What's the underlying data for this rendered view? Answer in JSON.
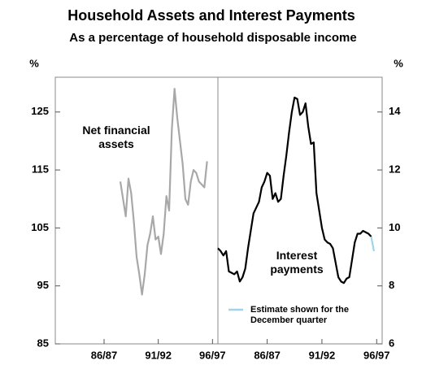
{
  "title": "Household Assets and Interest Payments",
  "subtitle": "As a percentage of household disposable income",
  "chart_data": [
    {
      "type": "line",
      "ylabel": "%",
      "axis_side": "left",
      "xlim": [
        1982,
        1997
      ],
      "xticks": [
        {
          "value": 1986.5,
          "label": "86/87"
        },
        {
          "value": 1991.5,
          "label": "91/92"
        },
        {
          "value": 1996.5,
          "label": "96/97"
        }
      ],
      "ylim": [
        85,
        131
      ],
      "yticks": [
        85,
        95,
        105,
        115,
        125
      ],
      "x": [
        1988,
        1988.25,
        1988.5,
        1988.75,
        1989,
        1989.25,
        1989.5,
        1989.75,
        1990,
        1990.25,
        1990.5,
        1990.75,
        1991,
        1991.25,
        1991.5,
        1991.75,
        1992,
        1992.25,
        1992.5,
        1992.75,
        1993,
        1993.25,
        1993.5,
        1993.75,
        1994,
        1994.25,
        1994.5,
        1994.75,
        1995,
        1995.25,
        1995.5,
        1995.75,
        1996
      ],
      "series": [
        {
          "name": "Net financial assets",
          "color": "#a8a8a8",
          "values": [
            113,
            110,
            107,
            113.5,
            111,
            106,
            100,
            97,
            93.5,
            97,
            102,
            104,
            107,
            103,
            103.5,
            100.5,
            104,
            110.5,
            108,
            122,
            129,
            124,
            120,
            116,
            110,
            109,
            113,
            115,
            114.5,
            113,
            112.5,
            112,
            116.5
          ]
        }
      ]
    },
    {
      "type": "line",
      "ylabel": "%",
      "axis_side": "right",
      "xlim": [
        1982,
        1997
      ],
      "xticks": [
        {
          "value": 1986.5,
          "label": "86/87"
        },
        {
          "value": 1991.5,
          "label": "91/92"
        },
        {
          "value": 1996.5,
          "label": "96/97"
        }
      ],
      "ylim": [
        6,
        15.2
      ],
      "yticks": [
        6,
        8,
        10,
        12,
        14
      ],
      "x": [
        1982,
        1982.25,
        1982.5,
        1982.75,
        1983,
        1983.25,
        1983.5,
        1983.75,
        1984,
        1984.25,
        1984.5,
        1984.75,
        1985,
        1985.25,
        1985.5,
        1985.75,
        1986,
        1986.25,
        1986.5,
        1986.75,
        1987,
        1987.25,
        1987.5,
        1987.75,
        1988,
        1988.25,
        1988.5,
        1988.75,
        1989,
        1989.25,
        1989.5,
        1989.75,
        1990,
        1990.25,
        1990.5,
        1990.75,
        1991,
        1991.25,
        1991.5,
        1991.75,
        1992,
        1992.25,
        1992.5,
        1992.75,
        1993,
        1993.25,
        1993.5,
        1993.75,
        1994,
        1994.25,
        1994.5,
        1994.75,
        1995,
        1995.25,
        1995.5,
        1995.75,
        1996,
        1996.25
      ],
      "series": [
        {
          "name": "Interest payments",
          "color": "#000000",
          "values": [
            9.3,
            9.2,
            9.05,
            9.2,
            8.5,
            8.45,
            8.4,
            8.5,
            8.15,
            8.3,
            8.6,
            9.3,
            9.9,
            10.5,
            10.7,
            10.9,
            11.4,
            11.6,
            11.9,
            11.8,
            11.0,
            11.2,
            10.9,
            11.0,
            11.8,
            12.5,
            13.3,
            14.0,
            14.5,
            14.45,
            13.9,
            14.0,
            14.3,
            13.5,
            12.9,
            12.95,
            11.2,
            10.6,
            10.0,
            9.6,
            9.5,
            9.45,
            9.3,
            8.8,
            8.3,
            8.15,
            8.1,
            8.25,
            8.3,
            8.9,
            9.5,
            9.8,
            9.8,
            9.9,
            9.85,
            9.8,
            9.7,
            null
          ]
        },
        {
          "name": "Estimate shown for the December quarter",
          "color": "#9fd4ea",
          "legend": true,
          "values": [
            null,
            null,
            null,
            null,
            null,
            null,
            null,
            null,
            null,
            null,
            null,
            null,
            null,
            null,
            null,
            null,
            null,
            null,
            null,
            null,
            null,
            null,
            null,
            null,
            null,
            null,
            null,
            null,
            null,
            null,
            null,
            null,
            null,
            null,
            null,
            null,
            null,
            null,
            null,
            null,
            null,
            null,
            null,
            null,
            null,
            null,
            null,
            null,
            null,
            null,
            null,
            null,
            null,
            null,
            null,
            null,
            9.7,
            9.2
          ]
        }
      ]
    }
  ]
}
